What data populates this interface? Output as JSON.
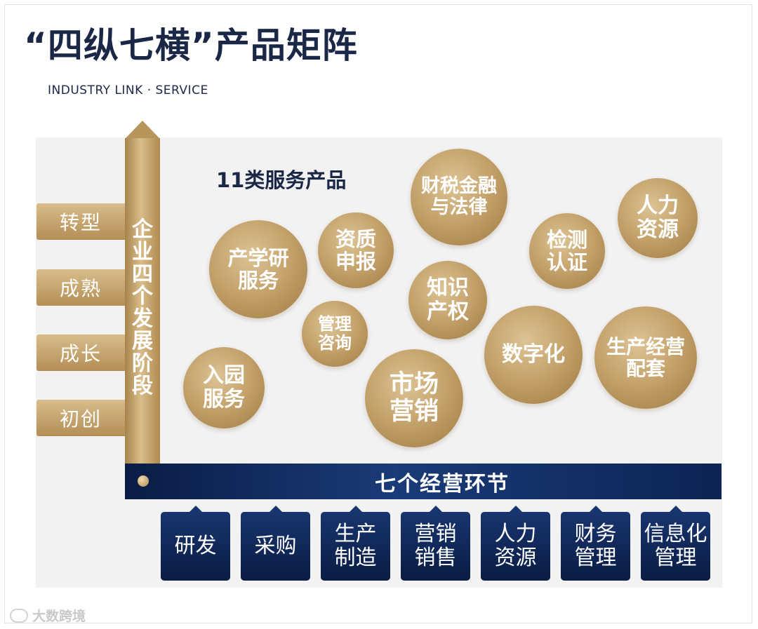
{
  "title": "“四纵七横”产品矩阵",
  "subtitle": "INDUSTRY LINK · SERVICE",
  "vertical_axis": {
    "label_chars": [
      "企",
      "业",
      "四",
      "个",
      "发",
      "展",
      "阶",
      "段"
    ],
    "stages": [
      "转型",
      "成熟",
      "成长",
      "初创"
    ]
  },
  "horizontal_axis": {
    "label": "七个经营环节",
    "links": [
      {
        "lines": [
          "研发"
        ]
      },
      {
        "lines": [
          "采购"
        ]
      },
      {
        "lines": [
          "生产",
          "制造"
        ]
      },
      {
        "lines": [
          "营销",
          "销售"
        ]
      },
      {
        "lines": [
          "人力",
          "资源"
        ]
      },
      {
        "lines": [
          "财务",
          "管理"
        ]
      },
      {
        "lines": [
          "信息化",
          "管理"
        ]
      }
    ]
  },
  "products": {
    "label": "11类服务产品",
    "items": [
      {
        "lines": [
          "财税金融",
          "与法律"
        ]
      },
      {
        "lines": [
          "人力",
          "资源"
        ]
      },
      {
        "lines": [
          "资质",
          "申报"
        ]
      },
      {
        "lines": [
          "检测",
          "认证"
        ]
      },
      {
        "lines": [
          "产学研",
          "服务"
        ]
      },
      {
        "lines": [
          "知识",
          "产权"
        ]
      },
      {
        "lines": [
          "管理",
          "咨询"
        ]
      },
      {
        "lines": [
          "数字化"
        ]
      },
      {
        "lines": [
          "生产经营",
          "配套"
        ]
      },
      {
        "lines": [
          "入园",
          "服务"
        ]
      },
      {
        "lines": [
          "市场",
          "营销"
        ]
      }
    ]
  },
  "watermark": "大数跨境",
  "colors": {
    "gold": "#c5a36c",
    "navy": "#0d2555",
    "title": "#1b2747",
    "panel": "#f2f2f3"
  }
}
